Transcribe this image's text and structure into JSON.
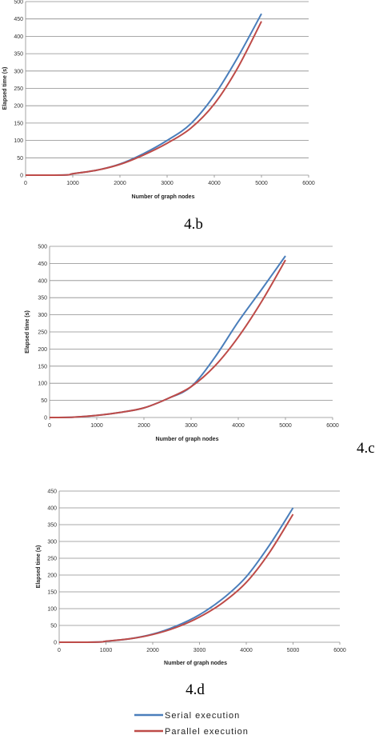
{
  "legend": {
    "serial_label": "Serial execution",
    "parallel_label": "Parallel execution",
    "serial_color": "#4a7ebb",
    "parallel_color": "#be4b48"
  },
  "chart_data": [
    {
      "type": "line",
      "panel": "4.b",
      "caption": "4.b",
      "xlabel": "Number of graph nodes",
      "ylabel": "Elapsed time (s)",
      "xlim": [
        0,
        6000
      ],
      "ylim": [
        0,
        500
      ],
      "xticks": [
        0,
        1000,
        2000,
        3000,
        4000,
        5000,
        6000
      ],
      "yticks": [
        0,
        50,
        100,
        150,
        200,
        250,
        300,
        350,
        400,
        450,
        500
      ],
      "grid": true,
      "series": [
        {
          "name": "Serial execution",
          "x": [
            0,
            500,
            900,
            1000,
            1500,
            2000,
            2500,
            3000,
            3500,
            4000,
            4500,
            5000
          ],
          "y": [
            0,
            0,
            1,
            4,
            14,
            32,
            62,
            100,
            148,
            230,
            340,
            465
          ]
        },
        {
          "name": "Parallel execution",
          "x": [
            0,
            500,
            900,
            1000,
            1500,
            2000,
            2500,
            3000,
            3500,
            4000,
            4500,
            5000
          ],
          "y": [
            0,
            0,
            1,
            4,
            14,
            31,
            58,
            92,
            135,
            205,
            310,
            443
          ]
        }
      ]
    },
    {
      "type": "line",
      "panel": "4.c",
      "caption": "4.c",
      "xlabel": "Number of graph nodes",
      "ylabel": "Elapsed time (s)",
      "xlim": [
        0,
        6000
      ],
      "ylim": [
        0,
        500
      ],
      "xticks": [
        0,
        1000,
        2000,
        3000,
        4000,
        5000,
        6000
      ],
      "yticks": [
        0,
        50,
        100,
        150,
        200,
        250,
        300,
        350,
        400,
        450,
        500
      ],
      "grid": true,
      "series": [
        {
          "name": "Serial execution",
          "x": [
            0,
            500,
            1000,
            1500,
            2000,
            2500,
            3000,
            3500,
            4000,
            4500,
            5000
          ],
          "y": [
            0,
            1,
            6,
            15,
            28,
            55,
            90,
            175,
            280,
            375,
            472
          ]
        },
        {
          "name": "Parallel execution",
          "x": [
            0,
            500,
            1000,
            1500,
            2000,
            2500,
            3000,
            3500,
            4000,
            4500,
            5000
          ],
          "y": [
            0,
            1,
            6,
            15,
            28,
            55,
            90,
            150,
            235,
            340,
            460
          ]
        }
      ]
    },
    {
      "type": "line",
      "panel": "4.d",
      "caption": "4.d",
      "xlabel": "Number of graph nodes",
      "ylabel": "Elapsed time (s)",
      "xlim": [
        0,
        6000
      ],
      "ylim": [
        0,
        450
      ],
      "xticks": [
        0,
        1000,
        2000,
        3000,
        4000,
        5000,
        6000
      ],
      "yticks": [
        0,
        50,
        100,
        150,
        200,
        250,
        300,
        350,
        400,
        450
      ],
      "grid": true,
      "series": [
        {
          "name": "Serial execution",
          "x": [
            0,
            500,
            900,
            1000,
            1500,
            2000,
            2500,
            3000,
            3500,
            4000,
            4500,
            5000
          ],
          "y": [
            0,
            0,
            1,
            3,
            10,
            24,
            48,
            82,
            130,
            195,
            290,
            400
          ]
        },
        {
          "name": "Parallel execution",
          "x": [
            0,
            500,
            900,
            1000,
            1500,
            2000,
            2500,
            3000,
            3500,
            4000,
            4500,
            5000
          ],
          "y": [
            0,
            0,
            1,
            3,
            10,
            23,
            44,
            75,
            118,
            178,
            268,
            381
          ]
        }
      ]
    }
  ]
}
